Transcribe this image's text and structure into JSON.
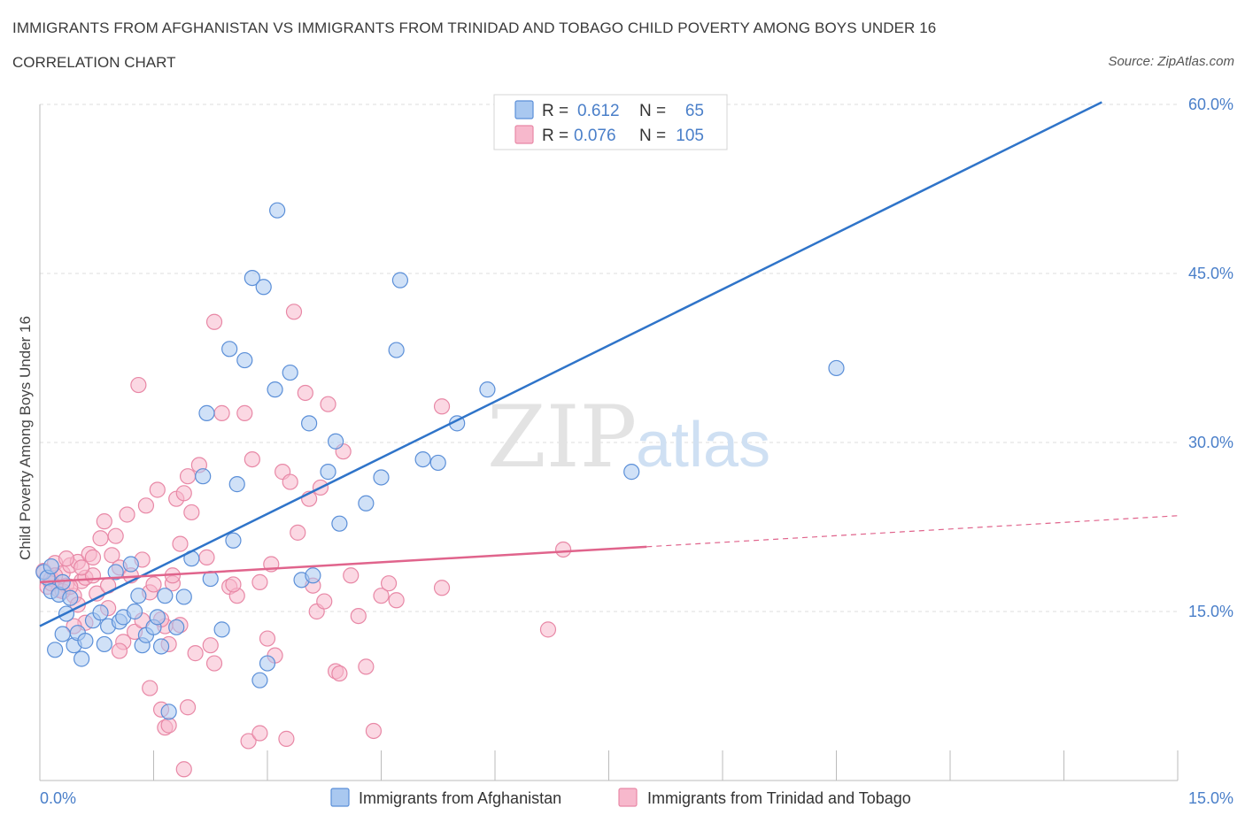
{
  "title": "IMMIGRANTS FROM AFGHANISTAN VS IMMIGRANTS FROM TRINIDAD AND TOBAGO CHILD POVERTY AMONG BOYS UNDER 16",
  "subtitle": "CORRELATION CHART",
  "source": "Source: ZipAtlas.com",
  "watermark": {
    "zip": "ZIP",
    "atlas": "atlas"
  },
  "colors": {
    "afghanistan_fill": "#a9c8f0",
    "afghanistan_stroke": "#5b8fd8",
    "afghanistan_line": "#2f74c9",
    "trinidad_fill": "#f7b8cc",
    "trinidad_stroke": "#e888a6",
    "trinidad_line": "#e0648c",
    "axis_label": "#4a7fc9",
    "grid": "#dcdcdc"
  },
  "legend_box": {
    "rows": [
      {
        "r_label": "R =",
        "r_value": "0.612",
        "n_label": "N =",
        "n_value": "65"
      },
      {
        "r_label": "R =",
        "r_value": "0.076",
        "n_label": "N =",
        "n_value": "105"
      }
    ]
  },
  "chart_data": {
    "type": "scatter",
    "title": "IMMIGRANTS FROM AFGHANISTAN VS IMMIGRANTS FROM TRINIDAD AND TOBAGO CHILD POVERTY AMONG BOYS UNDER 16",
    "xlabel": "",
    "ylabel": "Child Poverty Among Boys Under 16",
    "xlim": [
      0,
      15
    ],
    "ylim": [
      0,
      60
    ],
    "x_tick_labels": [
      "0.0%",
      "15.0%"
    ],
    "y_tick_labels": [
      "15.0%",
      "30.0%",
      "45.0%",
      "60.0%"
    ],
    "y_ticks": [
      15,
      30,
      45,
      60
    ],
    "legend_position": "bottom",
    "grid": true,
    "series": [
      {
        "name": "Immigrants from Afghanistan",
        "R": 0.612,
        "N": 65,
        "trend": {
          "x0": 0,
          "y0": 13.7,
          "x1": 14,
          "y1": 60.2,
          "dashed_from": null
        },
        "points": [
          [
            0.05,
            18.5
          ],
          [
            0.1,
            18.0
          ],
          [
            0.15,
            16.8
          ],
          [
            0.2,
            11.6
          ],
          [
            0.25,
            16.5
          ],
          [
            0.3,
            13.0
          ],
          [
            0.35,
            14.8
          ],
          [
            0.4,
            16.2
          ],
          [
            0.45,
            12.0
          ],
          [
            0.5,
            13.1
          ],
          [
            0.55,
            10.8
          ],
          [
            0.6,
            12.4
          ],
          [
            0.7,
            14.2
          ],
          [
            0.8,
            14.9
          ],
          [
            0.85,
            12.1
          ],
          [
            0.9,
            13.7
          ],
          [
            1.0,
            18.5
          ],
          [
            1.05,
            14.1
          ],
          [
            1.1,
            14.5
          ],
          [
            1.2,
            19.2
          ],
          [
            1.3,
            16.4
          ],
          [
            1.35,
            12.0
          ],
          [
            1.4,
            12.9
          ],
          [
            1.5,
            13.6
          ],
          [
            1.55,
            14.5
          ],
          [
            1.6,
            11.9
          ],
          [
            1.65,
            16.4
          ],
          [
            1.7,
            6.1
          ],
          [
            1.8,
            13.6
          ],
          [
            1.9,
            16.3
          ],
          [
            2.0,
            19.7
          ],
          [
            2.15,
            27.0
          ],
          [
            2.2,
            32.6
          ],
          [
            2.25,
            17.9
          ],
          [
            2.4,
            13.4
          ],
          [
            2.5,
            38.3
          ],
          [
            2.55,
            21.3
          ],
          [
            2.6,
            26.3
          ],
          [
            2.7,
            37.3
          ],
          [
            2.8,
            44.6
          ],
          [
            2.9,
            8.9
          ],
          [
            2.95,
            43.8
          ],
          [
            3.0,
            10.4
          ],
          [
            3.1,
            34.7
          ],
          [
            3.13,
            50.6
          ],
          [
            3.3,
            36.2
          ],
          [
            3.45,
            17.8
          ],
          [
            3.55,
            31.7
          ],
          [
            3.6,
            18.2
          ],
          [
            3.8,
            27.4
          ],
          [
            3.9,
            30.1
          ],
          [
            3.95,
            22.8
          ],
          [
            4.3,
            24.6
          ],
          [
            4.5,
            26.9
          ],
          [
            4.7,
            38.2
          ],
          [
            4.75,
            44.4
          ],
          [
            5.05,
            28.5
          ],
          [
            5.25,
            28.2
          ],
          [
            5.5,
            31.7
          ],
          [
            5.9,
            34.7
          ],
          [
            7.8,
            27.4
          ],
          [
            10.5,
            36.6
          ],
          [
            0.15,
            19.0
          ],
          [
            0.3,
            17.6
          ],
          [
            1.25,
            15.0
          ]
        ]
      },
      {
        "name": "Immigrants from Trinidad and Tobago",
        "R": 0.076,
        "N": 105,
        "trend": {
          "x0": 0,
          "y0": 17.6,
          "x1": 15,
          "y1": 23.5,
          "dashed_from": 8.0
        },
        "points": [
          [
            0.05,
            18.6
          ],
          [
            0.1,
            17.2
          ],
          [
            0.15,
            17.9
          ],
          [
            0.2,
            19.3
          ],
          [
            0.25,
            16.9
          ],
          [
            0.3,
            18.4
          ],
          [
            0.35,
            17.3
          ],
          [
            0.4,
            19.1
          ],
          [
            0.45,
            16.4
          ],
          [
            0.5,
            19.4
          ],
          [
            0.55,
            17.7
          ],
          [
            0.6,
            18.0
          ],
          [
            0.65,
            20.1
          ],
          [
            0.7,
            19.8
          ],
          [
            0.75,
            16.6
          ],
          [
            0.8,
            21.5
          ],
          [
            0.85,
            23.0
          ],
          [
            0.9,
            17.3
          ],
          [
            0.95,
            20.0
          ],
          [
            1.0,
            21.7
          ],
          [
            1.05,
            18.9
          ],
          [
            1.1,
            12.3
          ],
          [
            1.15,
            23.6
          ],
          [
            1.2,
            18.2
          ],
          [
            1.25,
            13.2
          ],
          [
            1.3,
            35.1
          ],
          [
            1.35,
            19.6
          ],
          [
            1.4,
            24.4
          ],
          [
            1.45,
            16.7
          ],
          [
            1.5,
            17.4
          ],
          [
            1.55,
            25.8
          ],
          [
            1.6,
            6.3
          ],
          [
            1.65,
            13.7
          ],
          [
            1.7,
            12.1
          ],
          [
            1.75,
            17.5
          ],
          [
            1.8,
            25.0
          ],
          [
            1.85,
            21.0
          ],
          [
            1.9,
            25.5
          ],
          [
            1.95,
            27.0
          ],
          [
            2.0,
            23.8
          ],
          [
            2.1,
            28.0
          ],
          [
            2.2,
            19.8
          ],
          [
            2.3,
            40.7
          ],
          [
            2.4,
            32.6
          ],
          [
            2.5,
            17.2
          ],
          [
            2.6,
            16.4
          ],
          [
            2.7,
            32.6
          ],
          [
            2.8,
            28.5
          ],
          [
            2.9,
            17.6
          ],
          [
            3.0,
            12.6
          ],
          [
            3.1,
            11.1
          ],
          [
            3.2,
            27.4
          ],
          [
            3.3,
            26.5
          ],
          [
            3.35,
            41.6
          ],
          [
            3.4,
            22.0
          ],
          [
            3.5,
            34.4
          ],
          [
            3.55,
            25.0
          ],
          [
            3.6,
            17.3
          ],
          [
            3.65,
            15.0
          ],
          [
            3.7,
            26.0
          ],
          [
            3.8,
            33.4
          ],
          [
            3.9,
            9.7
          ],
          [
            4.0,
            29.2
          ],
          [
            4.1,
            18.2
          ],
          [
            4.2,
            14.6
          ],
          [
            4.3,
            10.1
          ],
          [
            4.4,
            4.4
          ],
          [
            4.5,
            16.4
          ],
          [
            4.6,
            17.5
          ],
          [
            4.7,
            16.0
          ],
          [
            5.3,
            33.2
          ],
          [
            5.3,
            17.1
          ],
          [
            6.7,
            13.4
          ],
          [
            6.9,
            20.5
          ],
          [
            2.3,
            10.4
          ],
          [
            2.75,
            3.5
          ],
          [
            2.9,
            4.2
          ],
          [
            3.25,
            3.7
          ],
          [
            1.95,
            6.5
          ],
          [
            1.45,
            8.2
          ],
          [
            1.65,
            4.7
          ],
          [
            1.7,
            4.9
          ],
          [
            1.9,
            1.0
          ],
          [
            2.25,
            12.0
          ],
          [
            2.55,
            17.4
          ],
          [
            0.6,
            14.0
          ],
          [
            0.9,
            15.3
          ],
          [
            1.05,
            11.5
          ],
          [
            1.35,
            14.2
          ],
          [
            0.5,
            15.6
          ],
          [
            0.35,
            19.7
          ],
          [
            0.7,
            18.2
          ],
          [
            0.45,
            13.7
          ],
          [
            1.6,
            14.3
          ],
          [
            1.75,
            18.2
          ],
          [
            1.85,
            13.8
          ],
          [
            2.05,
            11.3
          ],
          [
            3.05,
            19.2
          ],
          [
            3.75,
            15.9
          ],
          [
            3.95,
            9.5
          ],
          [
            0.2,
            18.2
          ],
          [
            0.55,
            18.9
          ],
          [
            0.3,
            16.8
          ],
          [
            0.15,
            17.5
          ],
          [
            0.4,
            17.2
          ]
        ]
      }
    ]
  }
}
